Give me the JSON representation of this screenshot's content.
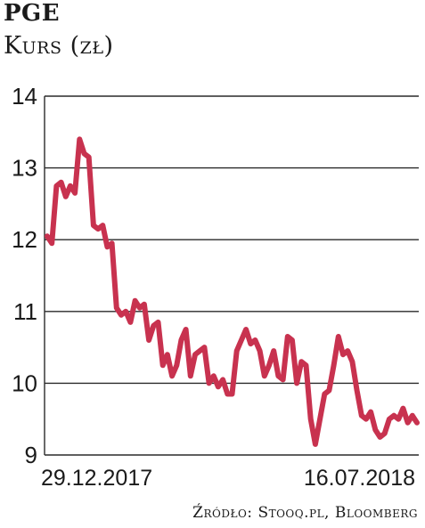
{
  "title": "PGE",
  "subtitle": "Kurs (zł)",
  "source": "Źródło: Stooq.pl, Bloomberg",
  "chart_data": {
    "type": "line",
    "title": "PGE",
    "ylabel": "Kurs (zł)",
    "ylim": [
      9,
      14
    ],
    "yticks": [
      9,
      10,
      11,
      12,
      13,
      14
    ],
    "xtick_labels": [
      "29.12.2017",
      "16.07.2018"
    ],
    "grid": true,
    "line_color": "#c8324f",
    "series": [
      {
        "values": [
          12.05,
          11.95,
          12.75,
          12.8,
          12.6,
          12.75,
          12.65,
          13.4,
          13.2,
          13.15,
          12.2,
          12.15,
          12.2,
          11.9,
          11.95,
          11.05,
          10.95,
          11.0,
          10.85,
          11.15,
          11.05,
          11.1,
          10.6,
          10.8,
          10.85,
          10.25,
          10.4,
          10.1,
          10.25,
          10.6,
          10.75,
          10.1,
          10.4,
          10.45,
          10.5,
          10.0,
          10.1,
          9.95,
          10.05,
          9.85,
          9.85,
          10.45,
          10.6,
          10.75,
          10.55,
          10.6,
          10.45,
          10.1,
          10.25,
          10.45,
          10.1,
          10.05,
          10.65,
          10.6,
          10.0,
          10.3,
          10.25,
          9.5,
          9.15,
          9.5,
          9.85,
          9.9,
          10.25,
          10.65,
          10.4,
          10.45,
          10.3,
          9.9,
          9.55,
          9.5,
          9.6,
          9.35,
          9.25,
          9.3,
          9.5,
          9.55,
          9.5,
          9.65,
          9.45,
          9.55,
          9.45
        ]
      }
    ]
  }
}
